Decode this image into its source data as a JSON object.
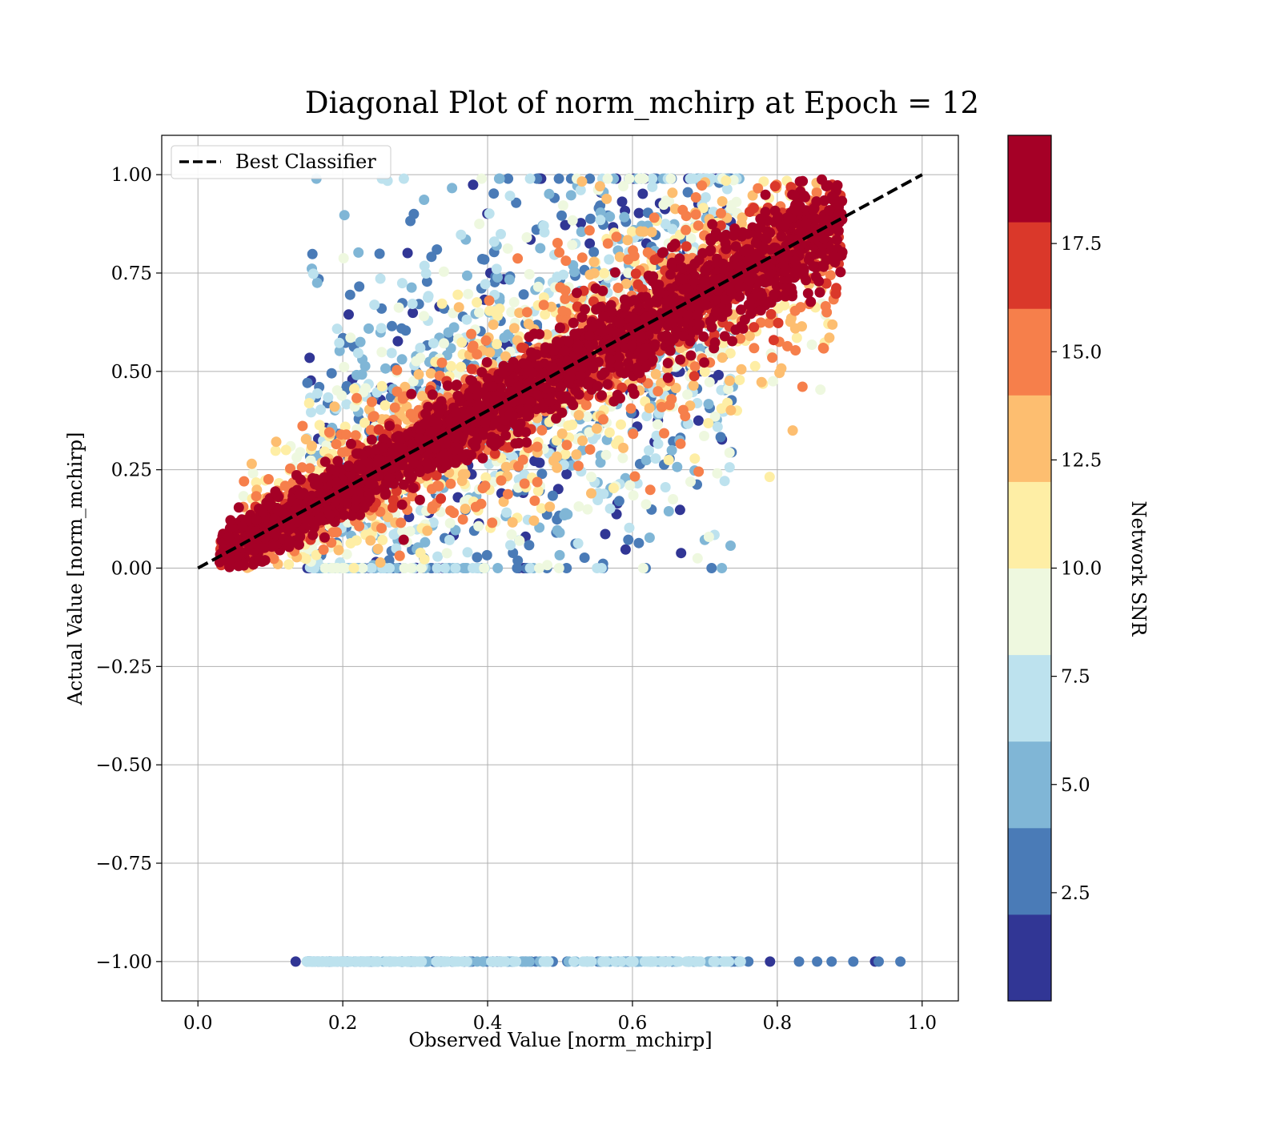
{
  "chart_data": {
    "type": "scatter",
    "title": "Diagonal Plot of norm_mchirp at Epoch = 12",
    "xlabel": "Observed Value [norm_mchirp]",
    "ylabel": "Actual Value [norm_mchirp]",
    "xlim": [
      -0.05,
      1.05
    ],
    "ylim": [
      -1.1,
      1.1
    ],
    "x_ticks": [
      0.0,
      0.2,
      0.4,
      0.6,
      0.8,
      1.0
    ],
    "x_tick_labels": [
      "0.0",
      "0.2",
      "0.4",
      "0.6",
      "0.8",
      "1.0"
    ],
    "y_ticks": [
      1.0,
      0.75,
      0.5,
      0.25,
      0.0,
      -0.25,
      -0.5,
      -0.75,
      -1.0
    ],
    "y_tick_labels": [
      "1.00",
      "0.75",
      "0.50",
      "0.25",
      "0.00",
      "−0.25",
      "−0.50",
      "−0.75",
      "−1.00"
    ],
    "grid": true,
    "legend": {
      "placement": "top-left",
      "entries": [
        {
          "label": "Best Classifier",
          "style": "dashed",
          "color": "#000000"
        }
      ]
    },
    "reference_line": {
      "name": "Best Classifier",
      "x": [
        0.0,
        1.0
      ],
      "y": [
        0.0,
        1.0
      ]
    },
    "colorbar": {
      "label": "Network SNR",
      "range": [
        0,
        20
      ],
      "ticks": [
        2.5,
        5.0,
        7.5,
        10.0,
        12.5,
        15.0,
        17.5
      ],
      "tick_labels": [
        "2.5",
        "5.0",
        "7.5",
        "10.0",
        "12.5",
        "15.0",
        "17.5"
      ],
      "colors": [
        "#313695",
        "#4a7bb7",
        "#80b6d6",
        "#bde2ee",
        "#eef8df",
        "#feeea5",
        "#fdbe70",
        "#f67f4b",
        "#da382a",
        "#a50026"
      ]
    },
    "clusters": [
      {
        "snr_band": "high",
        "x_range": [
          0.03,
          0.9
        ],
        "note": "points tightly along y = x"
      },
      {
        "snr_band": "medium",
        "x_range": [
          0.05,
          0.88
        ],
        "note": "spread around diagonal"
      },
      {
        "snr_band": "low",
        "x_range": [
          0.15,
          0.75
        ],
        "note": "broad scatter above and below diagonal"
      },
      {
        "snr_band": "low",
        "y_value": -1.0,
        "x_range": [
          0.13,
          0.97
        ],
        "note": "row of points at y = -1"
      }
    ]
  }
}
